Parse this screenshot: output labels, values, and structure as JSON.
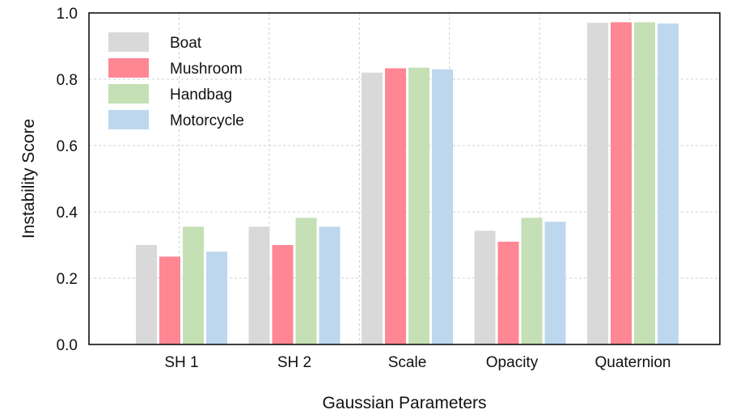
{
  "chart_data": {
    "type": "bar",
    "title": "",
    "xlabel": "Gaussian Parameters",
    "ylabel": "Instability Score",
    "categories": [
      "SH 1",
      "SH 2",
      "Scale",
      "Opacity",
      "Quaternion"
    ],
    "series": [
      {
        "name": "Boat",
        "color": "#d9d9d9",
        "values": [
          0.3,
          0.355,
          0.82,
          0.343,
          0.97
        ]
      },
      {
        "name": "Mushroom",
        "color": "#ff8793",
        "values": [
          0.265,
          0.3,
          0.833,
          0.31,
          0.972
        ]
      },
      {
        "name": "Handbag",
        "color": "#c5e0b4",
        "values": [
          0.355,
          0.382,
          0.835,
          0.382,
          0.972
        ]
      },
      {
        "name": "Motorcycle",
        "color": "#bdd7ee",
        "values": [
          0.28,
          0.355,
          0.83,
          0.37,
          0.968
        ]
      }
    ],
    "ylim": [
      0,
      1.0
    ],
    "yticks": [
      "0.0",
      "0.2",
      "0.4",
      "0.6",
      "0.8",
      "1.0"
    ],
    "grid": true,
    "legend_position": "top-left"
  }
}
